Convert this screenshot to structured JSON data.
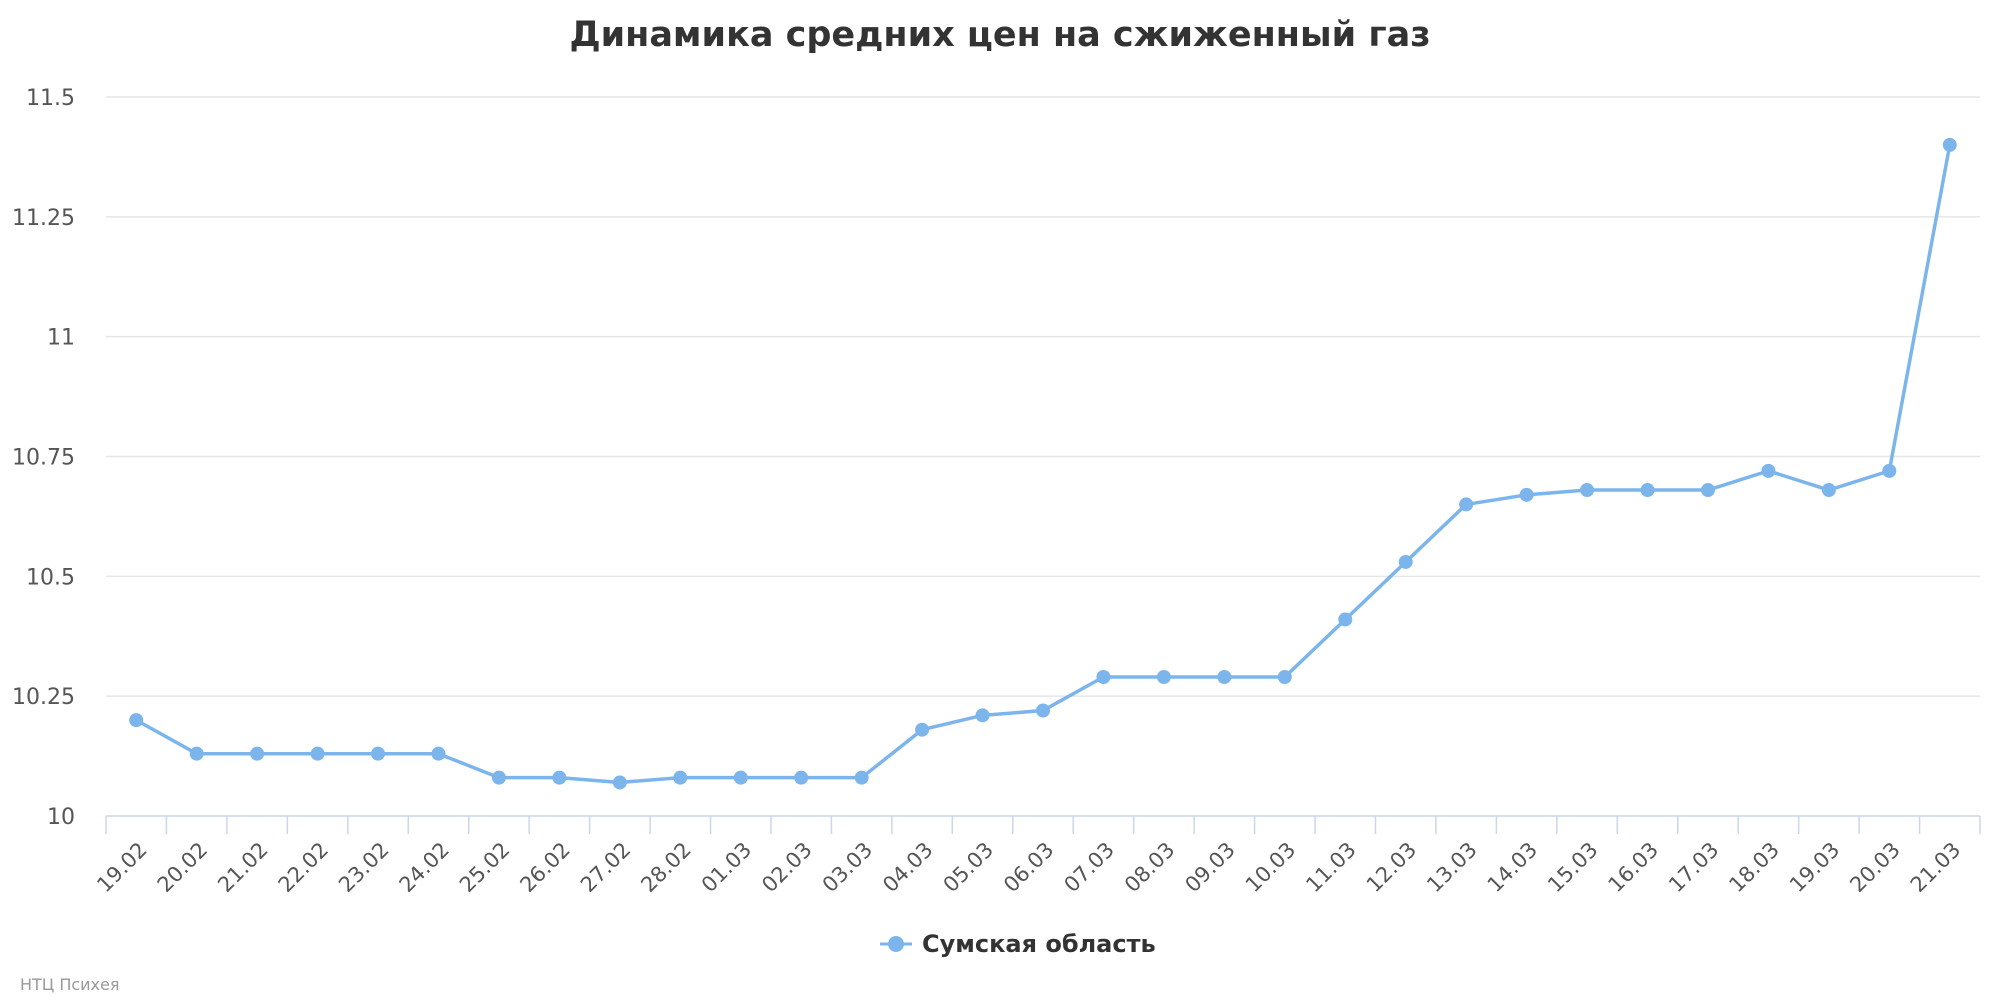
{
  "chart_data": {
    "type": "line",
    "title": "Динамика средних цен на сжиженный газ",
    "xlabel": "",
    "ylabel": "",
    "categories": [
      "19.02",
      "20.02",
      "21.02",
      "22.02",
      "23.02",
      "24.02",
      "25.02",
      "26.02",
      "27.02",
      "28.02",
      "01.03",
      "02.03",
      "03.03",
      "04.03",
      "05.03",
      "06.03",
      "07.03",
      "08.03",
      "09.03",
      "10.03",
      "11.03",
      "12.03",
      "13.03",
      "14.03",
      "15.03",
      "16.03",
      "17.03",
      "18.03",
      "19.03",
      "20.03",
      "21.03"
    ],
    "series": [
      {
        "name": "Сумская область",
        "color": "#7cb5ec",
        "values": [
          10.2,
          10.13,
          10.13,
          10.13,
          10.13,
          10.13,
          10.08,
          10.08,
          10.07,
          10.08,
          10.08,
          10.08,
          10.08,
          10.18,
          10.21,
          10.22,
          10.29,
          10.29,
          10.29,
          10.29,
          10.41,
          10.53,
          10.65,
          10.67,
          10.68,
          10.68,
          10.68,
          10.72,
          10.68,
          10.72,
          11.4
        ]
      }
    ],
    "ylim": [
      10,
      11.5
    ],
    "yticks": [
      {
        "value": 10,
        "label": "10"
      },
      {
        "value": 10.25,
        "label": "10.25"
      },
      {
        "value": 10.5,
        "label": "10.5"
      },
      {
        "value": 10.75,
        "label": "10.75"
      },
      {
        "value": 11,
        "label": "11"
      },
      {
        "value": 11.25,
        "label": "11.25"
      },
      {
        "value": 11.5,
        "label": "11.5"
      }
    ],
    "grid": true,
    "legend_position": "bottom-center"
  },
  "credit": "НТЦ Психея"
}
